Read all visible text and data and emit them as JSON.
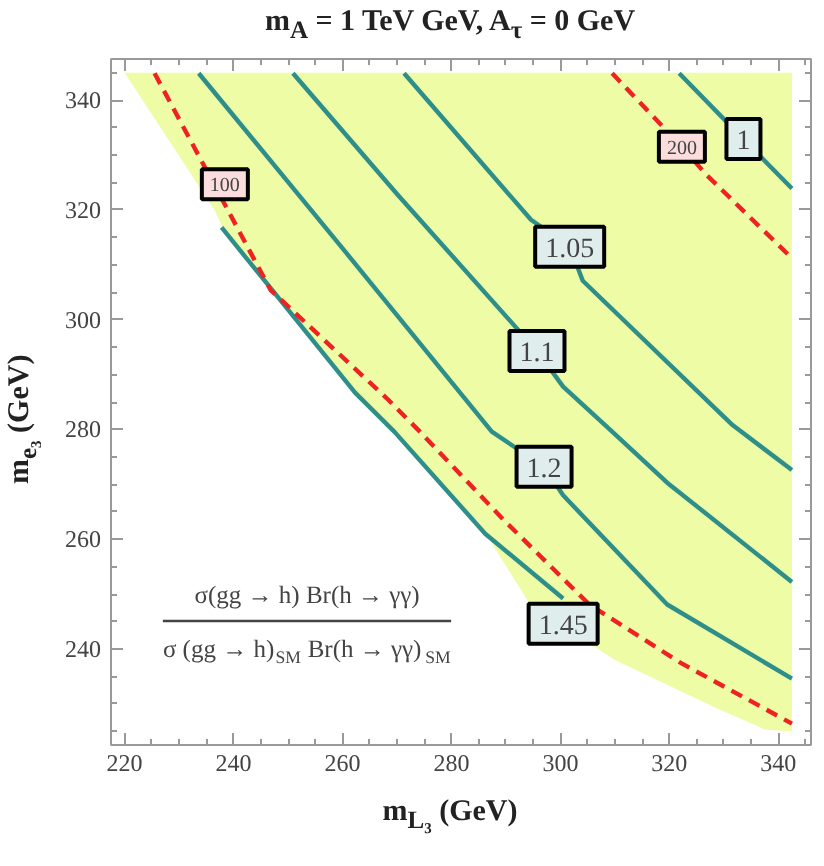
{
  "chart_data": {
    "type": "line",
    "title": "m$_{A}$ = 1 TeV GeV, A$_{τ}$ = 0 GeV",
    "xlabel": "m$_{L₃}$ (GeV)",
    "ylabel": "m$_{e₃}$ (GeV)",
    "xlim": [
      217.5,
      346
    ],
    "ylim": [
      222.5,
      347.5
    ],
    "xticks": [
      220,
      240,
      260,
      280,
      300,
      320,
      340
    ],
    "yticks": [
      240,
      260,
      280,
      300,
      320,
      340
    ],
    "series": [
      {
        "type": "area",
        "color": "#eefca6",
        "x": [
          220,
          236.5,
          238,
          262,
          285,
          294.5,
          310,
          328,
          337.6,
          342.5,
          342.5
        ],
        "values": [
          345,
          320,
          316.8,
          287,
          263,
          248,
          238,
          229.5,
          225.3,
          225,
          345
        ]
      },
      {
        "color": "#2e8e8a",
        "x": [
          237.8,
          262.3,
          269.5,
          286.2,
          300.5
        ],
        "values": [
          316.8,
          286.7,
          279.6,
          261,
          249.2
        ]
      },
      {
        "color": "#ee2222",
        "line_style": "dashed",
        "x": [
          225.5,
          246.8,
          268.3,
          274.2,
          289.8,
          305.3,
          322,
          342.5
        ],
        "values": [
          344.9,
          305.4,
          285.5,
          279.6,
          263.3,
          248.1,
          237.5,
          226.4
        ]
      },
      {
        "color": "#2e8e8a",
        "x": [
          233.6,
          260.5,
          287.4,
          297,
          300.5,
          319.6,
          342.5
        ],
        "values": [
          344.9,
          312.4,
          279.6,
          273.2,
          268,
          248.1,
          234.6
        ]
      },
      {
        "color": "#2e8e8a",
        "x": [
          250.9,
          270,
          295.7,
          300.5,
          309.5,
          319.6,
          342.5
        ],
        "values": [
          344.9,
          322.9,
          294.3,
          287.8,
          279.6,
          270.3,
          252.2
        ]
      },
      {
        "color": "#2e8e8a",
        "x": [
          271.3,
          294.6,
          301.7,
          304.1,
          331.6,
          342.5
        ],
        "values": [
          344.9,
          318.2,
          313.3,
          307.1,
          280.8,
          272.6
        ]
      },
      {
        "color": "#ee2222",
        "line_style": "dashed",
        "x": [
          309.5,
          322.3,
          326.8,
          342.5
        ],
        "values": [
          344.9,
          331.5,
          326.4,
          311.2
        ]
      },
      {
        "color": "#2e8e8a",
        "x": [
          321.8,
          333.6,
          342.5
        ],
        "values": [
          344.9,
          332.9,
          323.9
        ]
      }
    ],
    "annotations": [
      {
        "text": "100",
        "x": 238.4,
        "y": 324.7
      },
      {
        "text": "200",
        "x": 322.3,
        "y": 331.5
      },
      {
        "text": "1",
        "x": 333.6,
        "y": 332.9
      },
      {
        "text": "1.05",
        "x": 301.7,
        "y": 313.3
      },
      {
        "text": "1.1",
        "x": 295.7,
        "y": 294.3
      },
      {
        "text": "1.2",
        "x": 297,
        "y": 273.2
      },
      {
        "text": "1.45",
        "x": 300.5,
        "y": 244.6
      },
      "σ(gg → h) Br(h → γγ)",
      "σ (gg → h)$_{SM}$ Br(h → γγ)$_{SM}$"
    ],
    "grid": false
  }
}
